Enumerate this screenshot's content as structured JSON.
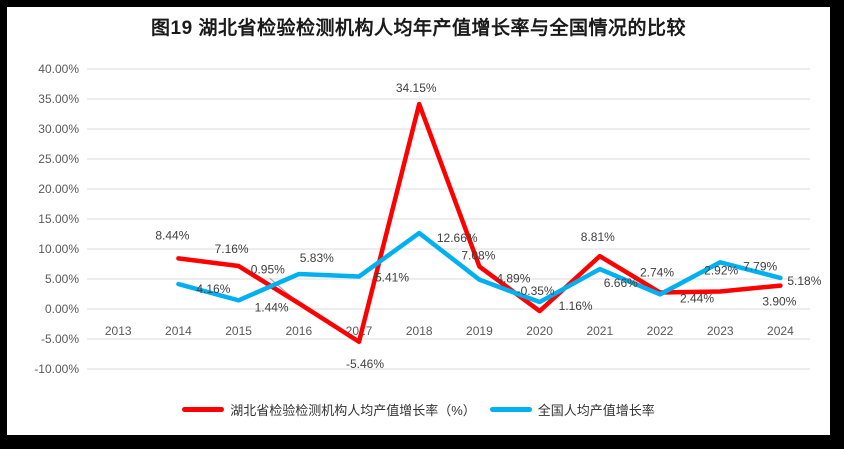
{
  "chart_data": {
    "type": "line",
    "title": "图19  湖北省检验检测机构人均年产值增长率与全国情况的比较",
    "categories": [
      "2013",
      "2014",
      "2015",
      "2016",
      "2017",
      "2018",
      "2019",
      "2020",
      "2021",
      "2022",
      "2023",
      "2024"
    ],
    "series": [
      {
        "key": "hubei",
        "name": "湖北省检验检测机构人均产值增长率（%）",
        "color": "#ff0000",
        "values": [
          null,
          8.44,
          7.16,
          0.95,
          -5.46,
          34.15,
          7.08,
          -0.35,
          8.81,
          2.74,
          2.92,
          3.9
        ],
        "labels": [
          null,
          "8.44%",
          "7.16%",
          "0.95%",
          "-5.46%",
          "34.15%",
          "7.08%",
          "-0.35%",
          "8.81%",
          "2.74%",
          "2.92%",
          "3.90%"
        ]
      },
      {
        "key": "national",
        "name": "全国人均产值增长率",
        "color": "#00b0f0",
        "values": [
          null,
          4.16,
          1.44,
          5.83,
          5.41,
          12.66,
          4.89,
          1.16,
          6.66,
          2.44,
          7.79,
          5.18
        ],
        "labels": [
          null,
          "4.16%",
          "1.44%",
          "5.83%",
          "5.41%",
          "12.66%",
          "4.89%",
          "1.16%",
          "6.66%",
          "2.44%",
          "7.79%",
          "5.18%"
        ]
      }
    ],
    "y_axis": {
      "min": -10,
      "max": 40,
      "step": 5,
      "tick_labels": [
        "40.00%",
        "35.00%",
        "30.00%",
        "25.00%",
        "20.00%",
        "15.00%",
        "10.00%",
        "5.00%",
        "0.00%",
        "-5.00%",
        "-10.00%"
      ]
    },
    "grid": true,
    "legend_position": "bottom",
    "label_offsets": {
      "hubei": [
        null,
        [
          -6,
          -23
        ],
        [
          -7,
          -17
        ],
        [
          -31,
          -34
        ],
        [
          6,
          22
        ],
        [
          -3,
          -16
        ],
        [
          -1,
          -11
        ],
        [
          -4,
          -20
        ],
        [
          -2,
          -19
        ],
        [
          -3,
          -20
        ],
        [
          1,
          -21
        ],
        [
          -1,
          16
        ]
      ],
      "national": [
        null,
        [
          35,
          5
        ],
        [
          33,
          7
        ],
        [
          18,
          -16
        ],
        [
          33,
          1
        ],
        [
          38,
          5
        ],
        [
          34,
          -1
        ],
        [
          36,
          4
        ],
        [
          21,
          14
        ],
        [
          37,
          4
        ],
        [
          40,
          4
        ],
        [
          24,
          3
        ]
      ]
    },
    "leader_lines": [
      {
        "series": 0,
        "index": 3
      }
    ]
  }
}
